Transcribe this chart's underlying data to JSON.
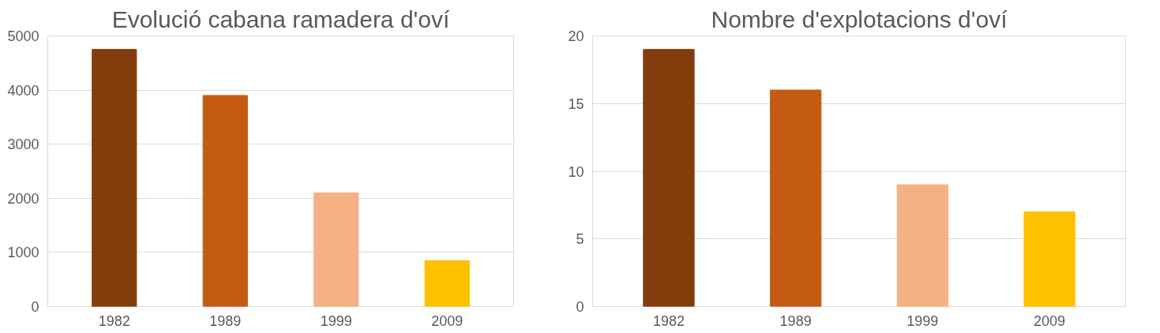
{
  "chart_data": [
    {
      "type": "bar",
      "title": "Evolució cabana ramadera d'oví",
      "categories": [
        "1982",
        "1989",
        "1999",
        "2009"
      ],
      "values": [
        4750,
        3900,
        2100,
        850
      ],
      "colors": [
        "#843c0c",
        "#c55a11",
        "#f4b183",
        "#ffc000"
      ],
      "ylim": [
        0,
        5000
      ],
      "yticks": [
        0,
        1000,
        2000,
        3000,
        4000,
        5000
      ],
      "grid": "y"
    },
    {
      "type": "bar",
      "title": "Nombre d'explotacions d'oví",
      "categories": [
        "1982",
        "1989",
        "1999",
        "2009"
      ],
      "values": [
        19,
        16,
        9,
        7
      ],
      "colors": [
        "#843c0c",
        "#c55a11",
        "#f4b183",
        "#ffc000"
      ],
      "ylim": [
        0,
        20
      ],
      "yticks": [
        0,
        5,
        10,
        15,
        20
      ],
      "grid": "y"
    }
  ]
}
